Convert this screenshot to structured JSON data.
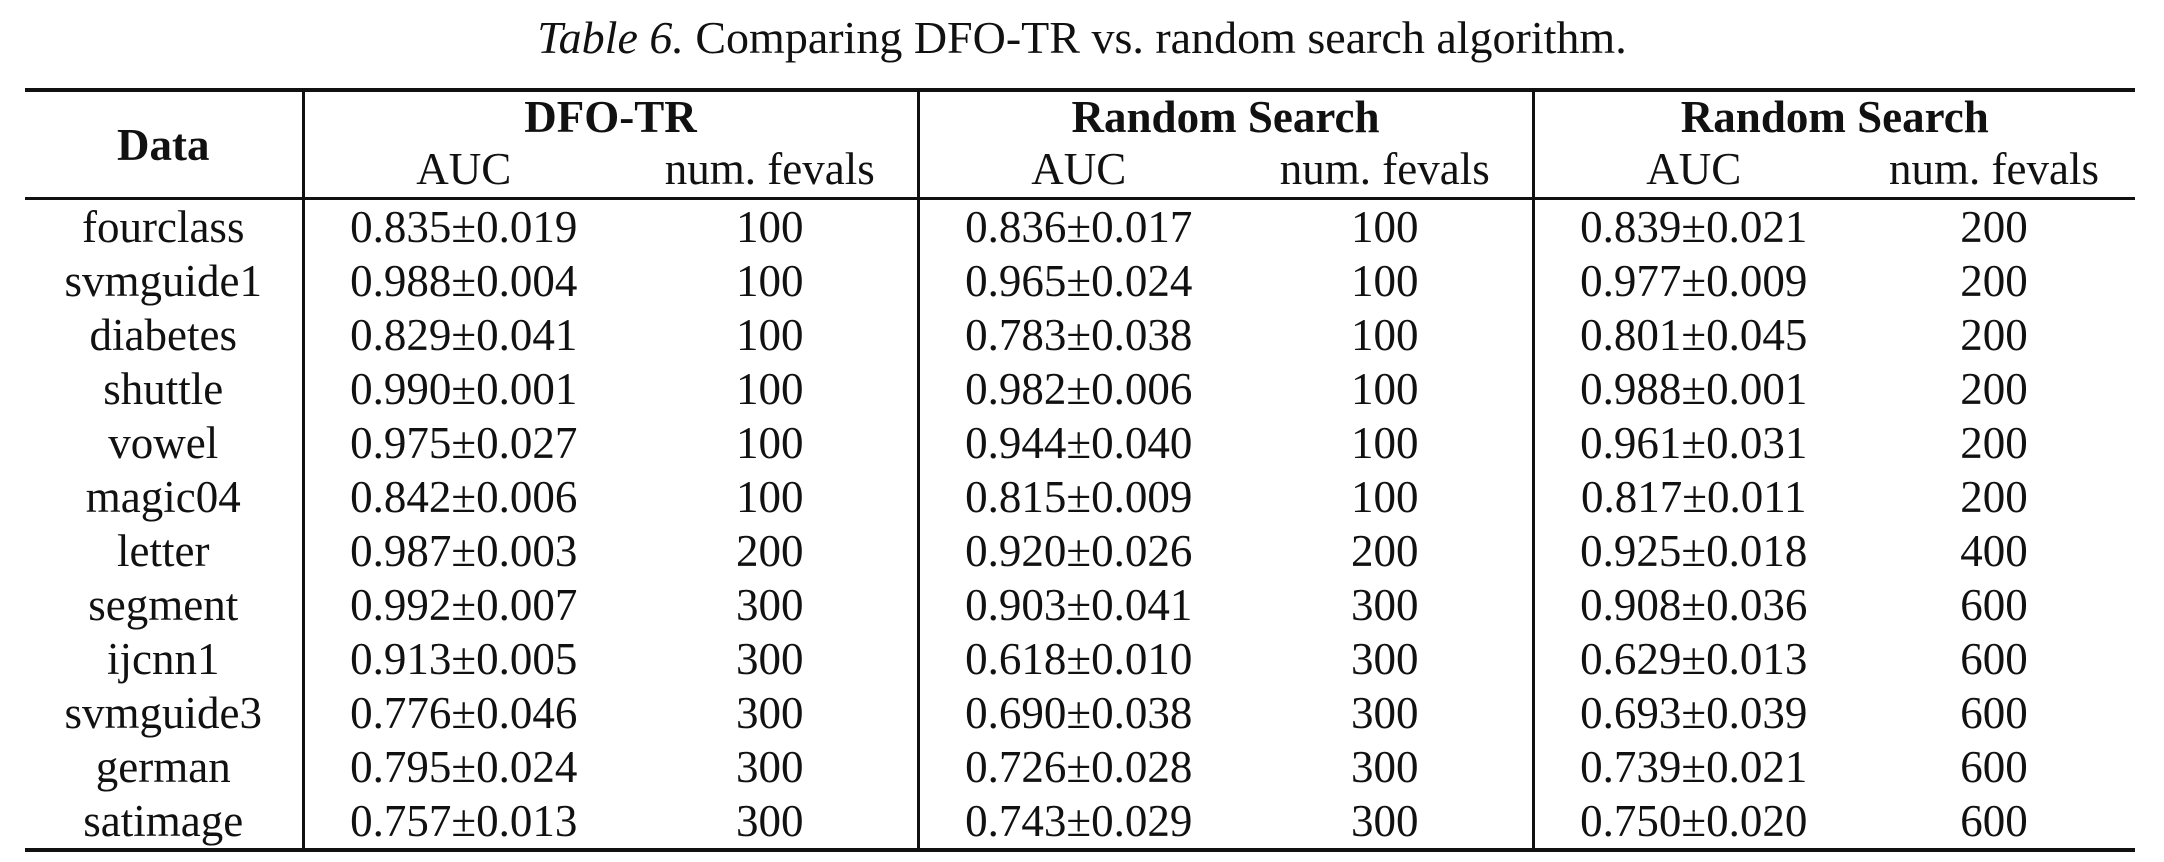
{
  "caption": {
    "label": "Table 6.",
    "text": "Comparing DFO-TR vs. random search algorithm."
  },
  "header": {
    "data": "Data",
    "groups": [
      "DFO-TR",
      "Random Search",
      "Random Search"
    ],
    "subheaders": [
      "AUC",
      "num. fevals",
      "AUC",
      "num. fevals",
      "AUC",
      "num. fevals"
    ]
  },
  "rows": [
    {
      "data": "fourclass",
      "cells": [
        "0.835±0.019",
        "100",
        "0.836±0.017",
        "100",
        "0.839±0.021",
        "200"
      ]
    },
    {
      "data": "svmguide1",
      "cells": [
        "0.988±0.004",
        "100",
        "0.965±0.024",
        "100",
        "0.977±0.009",
        "200"
      ]
    },
    {
      "data": "diabetes",
      "cells": [
        "0.829±0.041",
        "100",
        "0.783±0.038",
        "100",
        "0.801±0.045",
        "200"
      ]
    },
    {
      "data": "shuttle",
      "cells": [
        "0.990±0.001",
        "100",
        "0.982±0.006",
        "100",
        "0.988±0.001",
        "200"
      ]
    },
    {
      "data": "vowel",
      "cells": [
        "0.975±0.027",
        "100",
        "0.944±0.040",
        "100",
        "0.961±0.031",
        "200"
      ]
    },
    {
      "data": "magic04",
      "cells": [
        "0.842±0.006",
        "100",
        "0.815±0.009",
        "100",
        "0.817±0.011",
        "200"
      ]
    },
    {
      "data": "letter",
      "cells": [
        "0.987±0.003",
        "200",
        "0.920±0.026",
        "200",
        "0.925±0.018",
        "400"
      ]
    },
    {
      "data": "segment",
      "cells": [
        "0.992±0.007",
        "300",
        "0.903±0.041",
        "300",
        "0.908±0.036",
        "600"
      ]
    },
    {
      "data": "ijcnn1",
      "cells": [
        "0.913±0.005",
        "300",
        "0.618±0.010",
        "300",
        "0.629±0.013",
        "600"
      ]
    },
    {
      "data": "svmguide3",
      "cells": [
        "0.776±0.046",
        "300",
        "0.690±0.038",
        "300",
        "0.693±0.039",
        "600"
      ]
    },
    {
      "data": "german",
      "cells": [
        "0.795±0.024",
        "300",
        "0.726±0.028",
        "300",
        "0.739±0.021",
        "600"
      ]
    },
    {
      "data": "satimage",
      "cells": [
        "0.757±0.013",
        "300",
        "0.743±0.029",
        "300",
        "0.750±0.020",
        "600"
      ]
    }
  ]
}
